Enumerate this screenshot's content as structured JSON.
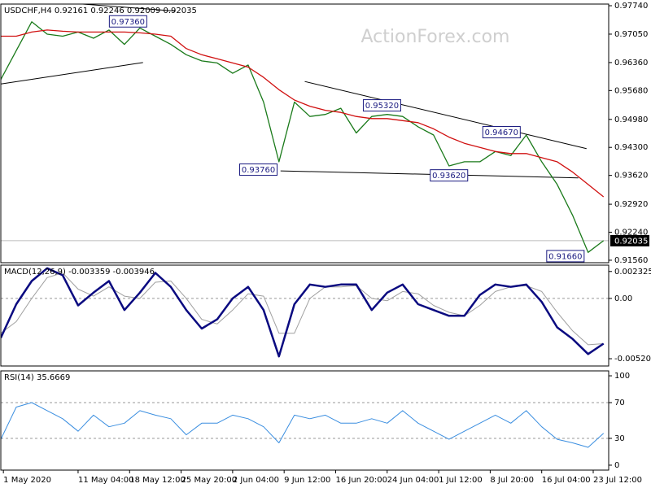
{
  "chart_data": [
    {
      "type": "line",
      "title": "USDCHF,H4  0.92161 0.92246 0.92009 0.92035",
      "watermark": "ActionForex.com",
      "x": [
        0,
        3,
        6,
        9,
        12,
        15,
        18,
        21,
        24,
        27,
        30,
        33,
        36,
        39,
        42,
        45,
        48,
        51,
        54,
        57,
        60,
        63,
        66,
        69,
        72,
        75,
        78,
        81,
        84,
        87,
        90,
        93,
        96,
        99,
        102,
        105,
        108,
        111,
        114,
        117
      ],
      "xlim": [
        0,
        118
      ],
      "ylim": [
        0.915,
        0.9778
      ],
      "yticks": [
        {
          "value": 0.9774,
          "label": "0.97740"
        },
        {
          "value": 0.9705,
          "label": "0.97050"
        },
        {
          "value": 0.9636,
          "label": "0.96360"
        },
        {
          "value": 0.9568,
          "label": "0.95680"
        },
        {
          "value": 0.9498,
          "label": "0.94980"
        },
        {
          "value": 0.943,
          "label": "0.94300"
        },
        {
          "value": 0.9362,
          "label": "0.93620"
        },
        {
          "value": 0.9292,
          "label": "0.92920"
        },
        {
          "value": 0.9224,
          "label": "0.92240"
        },
        {
          "value": 0.9156,
          "label": "0.91560"
        }
      ],
      "series": [
        {
          "color": "#1a7a1a",
          "values": [
            0.9595,
            0.9665,
            0.9735,
            0.9705,
            0.97,
            0.971,
            0.9695,
            0.9715,
            0.968,
            0.972,
            0.97,
            0.968,
            0.9655,
            0.964,
            0.9635,
            0.961,
            0.963,
            0.954,
            0.9395,
            0.954,
            0.9505,
            0.951,
            0.9525,
            0.9465,
            0.9505,
            0.951,
            0.9505,
            0.948,
            0.946,
            0.9385,
            0.9395,
            0.9395,
            0.942,
            0.941,
            0.946,
            0.9395,
            0.934,
            0.9265,
            0.9175,
            0.92035
          ]
        },
        {
          "color": "#d01010",
          "values": [
            0.97,
            0.97,
            0.971,
            0.9715,
            0.9712,
            0.971,
            0.971,
            0.971,
            0.971,
            0.9708,
            0.9705,
            0.97,
            0.967,
            0.9655,
            0.9645,
            0.9635,
            0.9625,
            0.96,
            0.957,
            0.9545,
            0.953,
            0.952,
            0.9515,
            0.9505,
            0.95,
            0.95,
            0.9495,
            0.949,
            0.9475,
            0.9455,
            0.944,
            0.943,
            0.942,
            0.9415,
            0.9415,
            0.9405,
            0.9395,
            0.937,
            0.934,
            0.931
          ]
        }
      ],
      "trendline_color": "#000000",
      "trendlines": [
        {
          "x": [
            0,
            27.6
          ],
          "values": [
            0.9584,
            0.9636
          ]
        },
        {
          "x": [
            0,
            33.9
          ],
          "values": [
            0.9793,
            0.9761
          ]
        },
        {
          "x": [
            59,
            113.7
          ],
          "values": [
            0.959,
            0.9427
          ]
        },
        {
          "x": [
            54.3,
            112.1
          ],
          "values": [
            0.9373,
            0.9356
          ]
        }
      ],
      "annotations": [
        {
          "x": 24.7,
          "value": 0.9736,
          "label": "0.97360"
        },
        {
          "x": 74,
          "value": 0.9532,
          "label": "0.95320"
        },
        {
          "x": 97.2,
          "value": 0.9467,
          "label": "0.94670"
        },
        {
          "x": 50,
          "value": 0.9376,
          "label": "0.93760"
        },
        {
          "x": 87,
          "value": 0.9362,
          "label": "0.93620"
        },
        {
          "x": 109.6,
          "value": 0.9166,
          "label": "0.91660"
        }
      ],
      "last_price": {
        "value": 0.92035,
        "label": "0.92035"
      }
    },
    {
      "type": "line",
      "title": "MACD(12,26,9) -0.003359 -0.003946",
      "x": [
        0,
        3,
        6,
        9,
        12,
        15,
        18,
        21,
        24,
        27,
        30,
        33,
        36,
        39,
        42,
        45,
        48,
        51,
        54,
        57,
        60,
        63,
        66,
        69,
        72,
        75,
        78,
        81,
        84,
        87,
        90,
        93,
        96,
        99,
        102,
        105,
        108,
        111,
        114,
        117
      ],
      "xlim": [
        0,
        118
      ],
      "ylim": [
        -0.00583,
        0.00287
      ],
      "yticks": [
        0.002325,
        {
          "value": 0,
          "label": "0.00"
        },
        -0.005201
      ],
      "reference_lines": [
        0
      ],
      "series": [
        {
          "color": "#a0a0a0",
          "width": 1,
          "values": [
            -0.003,
            -0.002,
            0,
            0.0018,
            0.0022,
            0.0008,
            0.0002,
            0.001,
            0.0002,
            0,
            0.0014,
            0.0015,
            0,
            -0.0018,
            -0.0022,
            -0.001,
            0.0004,
            0.0002,
            -0.003,
            -0.003,
            0,
            0.001,
            0.001,
            0.0011,
            0,
            -0.0002,
            0.0006,
            0.0004,
            -0.0006,
            -0.0012,
            -0.0015,
            -0.0006,
            0.0006,
            0.001,
            0.0011,
            0.0006,
            -0.0012,
            -0.0028,
            -0.004,
            -0.0039
          ]
        },
        {
          "color": "#0a0a80",
          "width": 2.5,
          "values": [
            -0.0034,
            -0.0005,
            0.0015,
            0.0026,
            0.002,
            -0.0006,
            0.0005,
            0.0015,
            -0.001,
            0.0005,
            0.0022,
            0.001,
            -0.001,
            -0.0026,
            -0.0018,
            0,
            0.001,
            -0.001,
            -0.005,
            -0.0005,
            0.0012,
            0.001,
            0.0012,
            0.0012,
            -0.001,
            0.0005,
            0.0012,
            -0.0005,
            -0.001,
            -0.0015,
            -0.0015,
            0.0003,
            0.0012,
            0.001,
            0.0012,
            -0.0003,
            -0.0025,
            -0.0035,
            -0.0048,
            -0.0039
          ]
        }
      ]
    },
    {
      "type": "line",
      "title": "RSI(14) 35.6669",
      "x": [
        0,
        3,
        6,
        9,
        12,
        15,
        18,
        21,
        24,
        27,
        30,
        33,
        36,
        39,
        42,
        45,
        48,
        51,
        54,
        57,
        60,
        63,
        66,
        69,
        72,
        75,
        78,
        81,
        84,
        87,
        90,
        93,
        96,
        99,
        102,
        105,
        108,
        111,
        114,
        117
      ],
      "xlim": [
        0,
        118
      ],
      "ylim": [
        -5.5,
        105.5
      ],
      "yticks": [
        100,
        70,
        30,
        0
      ],
      "reference_lines": [
        70,
        30
      ],
      "series": [
        {
          "color": "#3a8ee0",
          "width": 1,
          "values": [
            29,
            65,
            70,
            61,
            52,
            38,
            56,
            43,
            47,
            61,
            56,
            52,
            34,
            47,
            47,
            56,
            52,
            43,
            25,
            56,
            52,
            56,
            47,
            47,
            52,
            47,
            61,
            47,
            38,
            29,
            38,
            47,
            56,
            47,
            61,
            43,
            29,
            25,
            20,
            35.6669
          ]
        }
      ],
      "xticks": [
        {
          "value": 0.5,
          "label": "1 May 2020"
        },
        {
          "value": 15,
          "label": "11 May 04:00"
        },
        {
          "value": 25,
          "label": "18 May 12:00"
        },
        {
          "value": 35,
          "label": "25 May 20:00"
        },
        {
          "value": 45,
          "label": "2 Jun 04:00"
        },
        {
          "value": 55,
          "label": "9 Jun 12:00"
        },
        {
          "value": 65,
          "label": "16 Jun 20:00"
        },
        {
          "value": 75,
          "label": "24 Jun 04:00"
        },
        {
          "value": 85,
          "label": "1 Jul 12:00"
        },
        {
          "value": 95,
          "label": "8 Jul 20:00"
        },
        {
          "value": 105,
          "label": "16 Jul 04:00"
        },
        {
          "value": 115,
          "label": "23 Jul 12:00"
        }
      ]
    }
  ]
}
